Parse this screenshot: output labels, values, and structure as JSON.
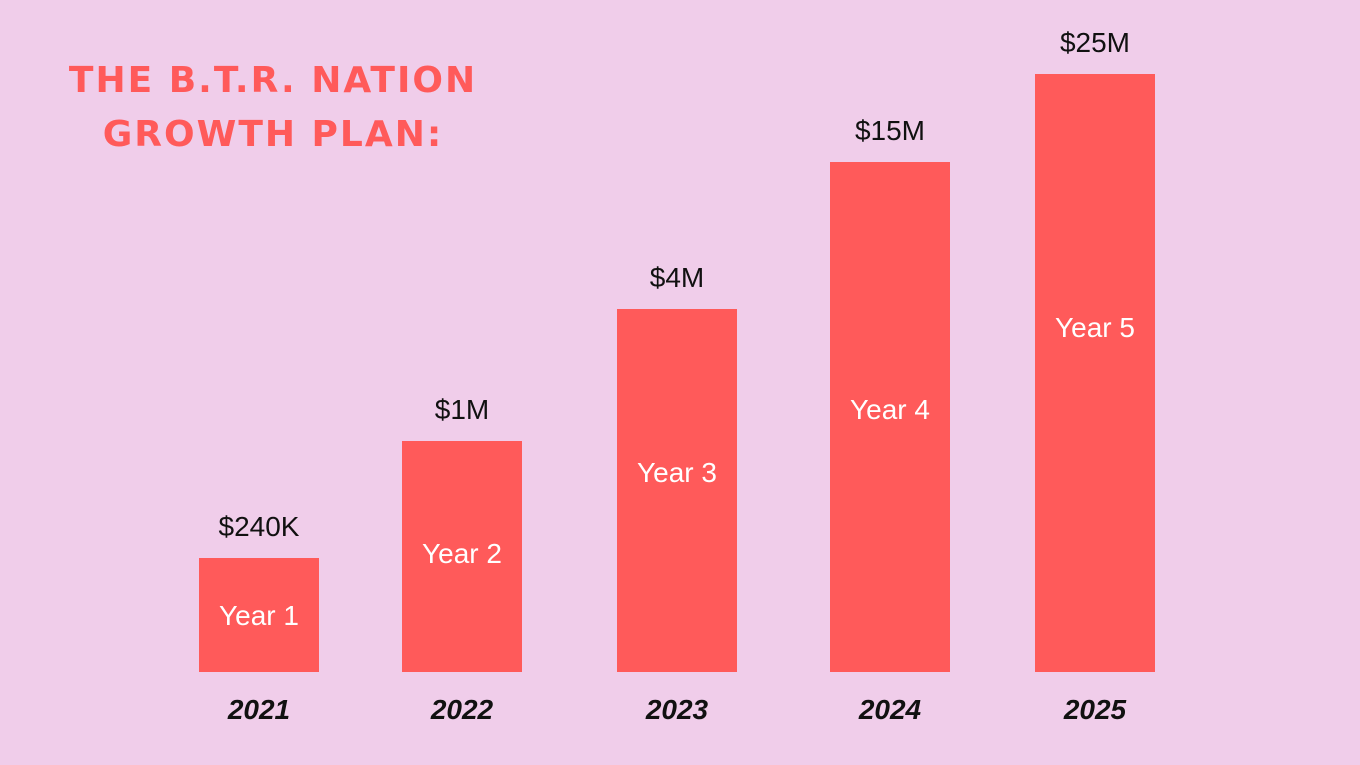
{
  "title_lines": [
    "THE B.T.R. NATION",
    "GROWTH PLAN:"
  ],
  "colors": {
    "background": "#f0cdea",
    "bar": "#ff5a5a",
    "title": "#ff5a5a",
    "value_label": "#111111",
    "bar_text": "#ffffff",
    "year_label": "#111111"
  },
  "chart_data": {
    "type": "bar",
    "title": "THE B.T.R. NATION GROWTH PLAN:",
    "categories": [
      "2021",
      "2022",
      "2023",
      "2024",
      "2025"
    ],
    "values": [
      0.24,
      1,
      4,
      15,
      25
    ],
    "value_labels": [
      "$240K",
      "$1M",
      "$4M",
      "$15M",
      "$25M"
    ],
    "bar_labels": [
      "Year 1",
      "Year 2",
      "Year 3",
      "Year 4",
      "Year 5"
    ],
    "xlabel": "",
    "ylabel": "",
    "grid": false,
    "legend": "none"
  }
}
